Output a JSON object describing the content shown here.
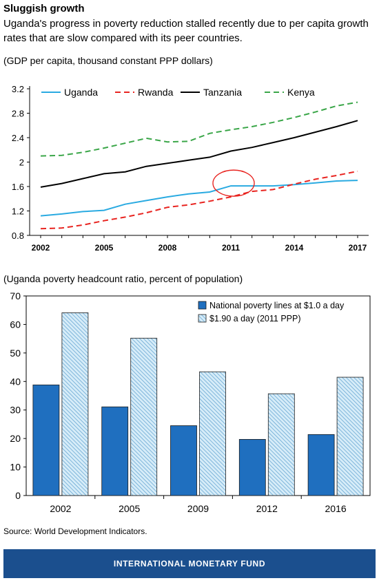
{
  "header": {
    "title": "Sluggish growth",
    "subtitle": "Uganda's progress in poverty reduction stalled recently due to per capita growth rates that are slow compared with its peer countries."
  },
  "source": "Source: World Development Indicators.",
  "footer": {
    "text": "INTERNATIONAL MONETARY FUND"
  },
  "colors": {
    "uganda": "#29aae1",
    "rwanda": "#e8231f",
    "tanzania": "#000000",
    "kenya": "#3aa648",
    "bar_national": "#1f6fbf",
    "bar_190": "#bfe0f3",
    "footer": "#1b4f8e"
  },
  "chart_data": [
    {
      "type": "line",
      "title": "(GDP per capita, thousand constant PPP dollars)",
      "x": [
        2002,
        2003,
        2004,
        2005,
        2006,
        2007,
        2008,
        2009,
        2010,
        2011,
        2012,
        2013,
        2014,
        2015,
        2016,
        2017
      ],
      "xticks": [
        "2002",
        "2005",
        "2008",
        "2011",
        "2014",
        "2017"
      ],
      "yticks": [
        "0.8",
        "1.2",
        "1.6",
        "2",
        "2.4",
        "2.8",
        "3.2"
      ],
      "ylim": [
        0.8,
        3.2
      ],
      "legend_position": "top",
      "annotation": "circle around Uganda 2011",
      "series": [
        {
          "name": "Uganda",
          "style": "solid",
          "values": [
            1.12,
            1.15,
            1.19,
            1.21,
            1.31,
            1.37,
            1.43,
            1.48,
            1.51,
            1.61,
            1.61,
            1.61,
            1.63,
            1.66,
            1.69,
            1.7
          ]
        },
        {
          "name": "Rwanda",
          "style": "dashed",
          "values": [
            0.91,
            0.92,
            0.97,
            1.04,
            1.1,
            1.17,
            1.26,
            1.3,
            1.36,
            1.43,
            1.52,
            1.55,
            1.64,
            1.72,
            1.78,
            1.85
          ]
        },
        {
          "name": "Tanzania",
          "style": "solid",
          "values": [
            1.59,
            1.65,
            1.73,
            1.81,
            1.84,
            1.93,
            1.98,
            2.03,
            2.08,
            2.18,
            2.24,
            2.32,
            2.4,
            2.49,
            2.58,
            2.68
          ]
        },
        {
          "name": "Kenya",
          "style": "dashed",
          "values": [
            2.1,
            2.11,
            2.16,
            2.23,
            2.31,
            2.39,
            2.33,
            2.34,
            2.47,
            2.53,
            2.58,
            2.65,
            2.73,
            2.82,
            2.92,
            2.98
          ]
        }
      ]
    },
    {
      "type": "bar",
      "title": "(Uganda poverty headcount ratio, percent of population)",
      "categories": [
        "2002",
        "2005",
        "2009",
        "2012",
        "2016"
      ],
      "yticks": [
        "0",
        "10",
        "20",
        "30",
        "40",
        "50",
        "60",
        "70"
      ],
      "ylim": [
        0,
        70
      ],
      "legend_position": "top-right",
      "series": [
        {
          "name": "National poverty lines at $1.0 a day",
          "fill": "solid",
          "values": [
            38.8,
            31.1,
            24.5,
            19.7,
            21.4
          ]
        },
        {
          "name": "$1.90 a day (2011 PPP)",
          "fill": "hatched",
          "values": [
            64.1,
            55.2,
            43.4,
            35.7,
            41.5
          ]
        }
      ]
    }
  ]
}
